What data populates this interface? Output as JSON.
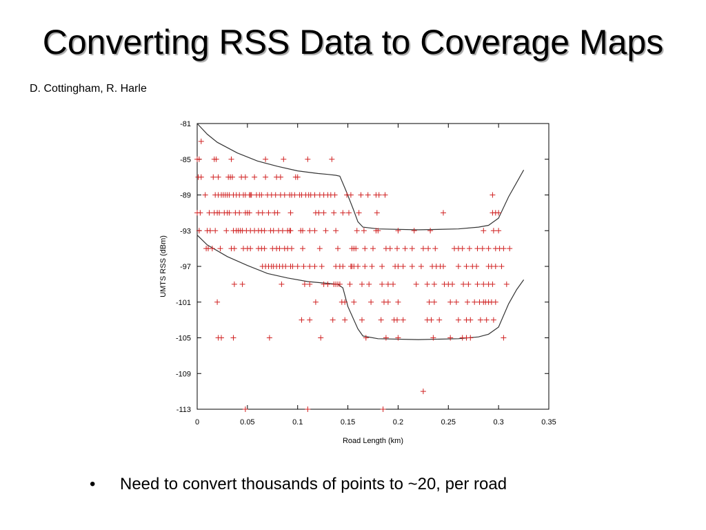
{
  "slide": {
    "title": "Converting RSS Data to Coverage Maps",
    "authors": "D. Cottingham, R. Harle",
    "bullet_symbol": "•",
    "bullet_text": "Need to convert thousands of points to ~20, per road"
  },
  "chart_data": {
    "type": "scatter",
    "title": "",
    "xlabel": "Road Length (km)",
    "ylabel": "UMTS RSS (dBm)",
    "xlim": [
      0,
      0.35
    ],
    "ylim": [
      -113,
      -81
    ],
    "xticks": [
      "0",
      "0.05",
      "0.1",
      "0.15",
      "0.2",
      "0.25",
      "0.3",
      "0.35"
    ],
    "yticks": [
      "-81",
      "-85",
      "-89",
      "-93",
      "-97",
      "-101",
      "-105",
      "-109",
      "-113"
    ],
    "point_color": "#d02020",
    "line_color": "#333333",
    "points": [
      [
        0.004,
        -83
      ],
      [
        0.0,
        -85
      ],
      [
        0.002,
        -85
      ],
      [
        0.017,
        -85
      ],
      [
        0.019,
        -85
      ],
      [
        0.034,
        -85
      ],
      [
        0.068,
        -85
      ],
      [
        0.086,
        -85
      ],
      [
        0.11,
        -85
      ],
      [
        0.134,
        -85
      ],
      [
        0.001,
        -87
      ],
      [
        0.004,
        -87
      ],
      [
        0.016,
        -87
      ],
      [
        0.021,
        -87
      ],
      [
        0.031,
        -87
      ],
      [
        0.033,
        -87
      ],
      [
        0.035,
        -87
      ],
      [
        0.044,
        -87
      ],
      [
        0.048,
        -87
      ],
      [
        0.057,
        -87
      ],
      [
        0.068,
        -87
      ],
      [
        0.079,
        -87
      ],
      [
        0.083,
        -87
      ],
      [
        0.098,
        -87
      ],
      [
        0.1,
        -87
      ],
      [
        0.008,
        -89
      ],
      [
        0.018,
        -89
      ],
      [
        0.021,
        -89
      ],
      [
        0.024,
        -89
      ],
      [
        0.026,
        -89
      ],
      [
        0.028,
        -89
      ],
      [
        0.03,
        -89
      ],
      [
        0.032,
        -89
      ],
      [
        0.036,
        -89
      ],
      [
        0.039,
        -89
      ],
      [
        0.042,
        -89
      ],
      [
        0.046,
        -89
      ],
      [
        0.048,
        -89
      ],
      [
        0.052,
        -89
      ],
      [
        0.054,
        -89
      ],
      [
        0.053,
        -89
      ],
      [
        0.059,
        -89
      ],
      [
        0.062,
        -89
      ],
      [
        0.064,
        -89
      ],
      [
        0.07,
        -89
      ],
      [
        0.074,
        -89
      ],
      [
        0.078,
        -89
      ],
      [
        0.083,
        -89
      ],
      [
        0.087,
        -89
      ],
      [
        0.092,
        -89
      ],
      [
        0.094,
        -89
      ],
      [
        0.097,
        -89
      ],
      [
        0.102,
        -89
      ],
      [
        0.104,
        -89
      ],
      [
        0.108,
        -89
      ],
      [
        0.111,
        -89
      ],
      [
        0.113,
        -89
      ],
      [
        0.117,
        -89
      ],
      [
        0.122,
        -89
      ],
      [
        0.126,
        -89
      ],
      [
        0.13,
        -89
      ],
      [
        0.133,
        -89
      ],
      [
        0.137,
        -89
      ],
      [
        0.149,
        -89
      ],
      [
        0.153,
        -89
      ],
      [
        0.163,
        -89
      ],
      [
        0.17,
        -89
      ],
      [
        0.178,
        -89
      ],
      [
        0.181,
        -89
      ],
      [
        0.187,
        -89
      ],
      [
        0.294,
        -89
      ],
      [
        0.0,
        -91
      ],
      [
        0.003,
        -91
      ],
      [
        0.012,
        -91
      ],
      [
        0.017,
        -91
      ],
      [
        0.02,
        -91
      ],
      [
        0.022,
        -91
      ],
      [
        0.027,
        -91
      ],
      [
        0.03,
        -91
      ],
      [
        0.032,
        -91
      ],
      [
        0.038,
        -91
      ],
      [
        0.042,
        -91
      ],
      [
        0.048,
        -91
      ],
      [
        0.05,
        -91
      ],
      [
        0.052,
        -91
      ],
      [
        0.061,
        -91
      ],
      [
        0.065,
        -91
      ],
      [
        0.071,
        -91
      ],
      [
        0.077,
        -91
      ],
      [
        0.08,
        -91
      ],
      [
        0.093,
        -91
      ],
      [
        0.118,
        -91
      ],
      [
        0.121,
        -91
      ],
      [
        0.126,
        -91
      ],
      [
        0.136,
        -91
      ],
      [
        0.145,
        -91
      ],
      [
        0.151,
        -91
      ],
      [
        0.161,
        -91
      ],
      [
        0.179,
        -91
      ],
      [
        0.245,
        -91
      ],
      [
        0.294,
        -91
      ],
      [
        0.297,
        -91
      ],
      [
        0.3,
        -91
      ],
      [
        0.002,
        -93
      ],
      [
        0.01,
        -93
      ],
      [
        0.013,
        -93
      ],
      [
        0.018,
        -93
      ],
      [
        0.029,
        -93
      ],
      [
        0.036,
        -93
      ],
      [
        0.039,
        -93
      ],
      [
        0.041,
        -93
      ],
      [
        0.043,
        -93
      ],
      [
        0.045,
        -93
      ],
      [
        0.049,
        -93
      ],
      [
        0.053,
        -93
      ],
      [
        0.057,
        -93
      ],
      [
        0.061,
        -93
      ],
      [
        0.064,
        -93
      ],
      [
        0.067,
        -93
      ],
      [
        0.073,
        -93
      ],
      [
        0.076,
        -93
      ],
      [
        0.081,
        -93
      ],
      [
        0.085,
        -93
      ],
      [
        0.09,
        -93
      ],
      [
        0.092,
        -93
      ],
      [
        0.093,
        -93
      ],
      [
        0.103,
        -93
      ],
      [
        0.105,
        -93
      ],
      [
        0.112,
        -93
      ],
      [
        0.117,
        -93
      ],
      [
        0.128,
        -93
      ],
      [
        0.138,
        -93
      ],
      [
        0.159,
        -93
      ],
      [
        0.166,
        -93
      ],
      [
        0.178,
        -93
      ],
      [
        0.18,
        -93
      ],
      [
        0.2,
        -93
      ],
      [
        0.216,
        -93
      ],
      [
        0.232,
        -93
      ],
      [
        0.285,
        -93
      ],
      [
        0.295,
        -93
      ],
      [
        0.3,
        -93
      ],
      [
        0.009,
        -95
      ],
      [
        0.011,
        -95
      ],
      [
        0.015,
        -95
      ],
      [
        0.023,
        -95
      ],
      [
        0.034,
        -95
      ],
      [
        0.037,
        -95
      ],
      [
        0.046,
        -95
      ],
      [
        0.05,
        -95
      ],
      [
        0.053,
        -95
      ],
      [
        0.061,
        -95
      ],
      [
        0.064,
        -95
      ],
      [
        0.067,
        -95
      ],
      [
        0.075,
        -95
      ],
      [
        0.079,
        -95
      ],
      [
        0.082,
        -95
      ],
      [
        0.087,
        -95
      ],
      [
        0.09,
        -95
      ],
      [
        0.094,
        -95
      ],
      [
        0.105,
        -95
      ],
      [
        0.122,
        -95
      ],
      [
        0.14,
        -95
      ],
      [
        0.154,
        -95
      ],
      [
        0.156,
        -95
      ],
      [
        0.158,
        -95
      ],
      [
        0.167,
        -95
      ],
      [
        0.175,
        -95
      ],
      [
        0.188,
        -95
      ],
      [
        0.192,
        -95
      ],
      [
        0.199,
        -95
      ],
      [
        0.207,
        -95
      ],
      [
        0.214,
        -95
      ],
      [
        0.225,
        -95
      ],
      [
        0.23,
        -95
      ],
      [
        0.237,
        -95
      ],
      [
        0.256,
        -95
      ],
      [
        0.26,
        -95
      ],
      [
        0.264,
        -95
      ],
      [
        0.271,
        -95
      ],
      [
        0.279,
        -95
      ],
      [
        0.284,
        -95
      ],
      [
        0.29,
        -95
      ],
      [
        0.297,
        -95
      ],
      [
        0.301,
        -95
      ],
      [
        0.305,
        -95
      ],
      [
        0.311,
        -95
      ],
      [
        0.065,
        -97
      ],
      [
        0.068,
        -97
      ],
      [
        0.071,
        -97
      ],
      [
        0.074,
        -97
      ],
      [
        0.076,
        -97
      ],
      [
        0.079,
        -97
      ],
      [
        0.082,
        -97
      ],
      [
        0.085,
        -97
      ],
      [
        0.088,
        -97
      ],
      [
        0.093,
        -97
      ],
      [
        0.095,
        -97
      ],
      [
        0.1,
        -97
      ],
      [
        0.106,
        -97
      ],
      [
        0.112,
        -97
      ],
      [
        0.117,
        -97
      ],
      [
        0.124,
        -97
      ],
      [
        0.138,
        -97
      ],
      [
        0.142,
        -97
      ],
      [
        0.145,
        -97
      ],
      [
        0.153,
        -97
      ],
      [
        0.154,
        -97
      ],
      [
        0.156,
        -97
      ],
      [
        0.16,
        -97
      ],
      [
        0.167,
        -97
      ],
      [
        0.174,
        -97
      ],
      [
        0.184,
        -97
      ],
      [
        0.197,
        -97
      ],
      [
        0.2,
        -97
      ],
      [
        0.205,
        -97
      ],
      [
        0.214,
        -97
      ],
      [
        0.223,
        -97
      ],
      [
        0.234,
        -97
      ],
      [
        0.238,
        -97
      ],
      [
        0.242,
        -97
      ],
      [
        0.245,
        -97
      ],
      [
        0.26,
        -97
      ],
      [
        0.268,
        -97
      ],
      [
        0.274,
        -97
      ],
      [
        0.278,
        -97
      ],
      [
        0.29,
        -97
      ],
      [
        0.293,
        -97
      ],
      [
        0.297,
        -97
      ],
      [
        0.303,
        -97
      ],
      [
        0.037,
        -99
      ],
      [
        0.045,
        -99
      ],
      [
        0.084,
        -99
      ],
      [
        0.107,
        -99
      ],
      [
        0.112,
        -99
      ],
      [
        0.126,
        -99
      ],
      [
        0.13,
        -99
      ],
      [
        0.136,
        -99
      ],
      [
        0.138,
        -99
      ],
      [
        0.14,
        -99
      ],
      [
        0.142,
        -99
      ],
      [
        0.152,
        -99
      ],
      [
        0.164,
        -99
      ],
      [
        0.171,
        -99
      ],
      [
        0.184,
        -99
      ],
      [
        0.19,
        -99
      ],
      [
        0.195,
        -99
      ],
      [
        0.218,
        -99
      ],
      [
        0.229,
        -99
      ],
      [
        0.236,
        -99
      ],
      [
        0.246,
        -99
      ],
      [
        0.25,
        -99
      ],
      [
        0.254,
        -99
      ],
      [
        0.265,
        -99
      ],
      [
        0.27,
        -99
      ],
      [
        0.279,
        -99
      ],
      [
        0.285,
        -99
      ],
      [
        0.29,
        -99
      ],
      [
        0.294,
        -99
      ],
      [
        0.308,
        -99
      ],
      [
        0.02,
        -101
      ],
      [
        0.118,
        -101
      ],
      [
        0.144,
        -101
      ],
      [
        0.147,
        -101
      ],
      [
        0.156,
        -101
      ],
      [
        0.173,
        -101
      ],
      [
        0.186,
        -101
      ],
      [
        0.19,
        -101
      ],
      [
        0.2,
        -101
      ],
      [
        0.231,
        -101
      ],
      [
        0.236,
        -101
      ],
      [
        0.252,
        -101
      ],
      [
        0.258,
        -101
      ],
      [
        0.269,
        -101
      ],
      [
        0.276,
        -101
      ],
      [
        0.281,
        -101
      ],
      [
        0.285,
        -101
      ],
      [
        0.287,
        -101
      ],
      [
        0.29,
        -101
      ],
      [
        0.293,
        -101
      ],
      [
        0.297,
        -101
      ],
      [
        0.104,
        -103
      ],
      [
        0.112,
        -103
      ],
      [
        0.135,
        -103
      ],
      [
        0.147,
        -103
      ],
      [
        0.164,
        -103
      ],
      [
        0.183,
        -103
      ],
      [
        0.196,
        -103
      ],
      [
        0.199,
        -103
      ],
      [
        0.205,
        -103
      ],
      [
        0.229,
        -103
      ],
      [
        0.233,
        -103
      ],
      [
        0.241,
        -103
      ],
      [
        0.26,
        -103
      ],
      [
        0.268,
        -103
      ],
      [
        0.272,
        -103
      ],
      [
        0.282,
        -103
      ],
      [
        0.288,
        -103
      ],
      [
        0.295,
        -103
      ],
      [
        0.021,
        -105
      ],
      [
        0.024,
        -105
      ],
      [
        0.036,
        -105
      ],
      [
        0.072,
        -105
      ],
      [
        0.123,
        -105
      ],
      [
        0.168,
        -105
      ],
      [
        0.188,
        -105
      ],
      [
        0.2,
        -105
      ],
      [
        0.235,
        -105
      ],
      [
        0.252,
        -105
      ],
      [
        0.264,
        -105
      ],
      [
        0.268,
        -105
      ],
      [
        0.272,
        -105
      ],
      [
        0.305,
        -105
      ],
      [
        0.225,
        -111
      ],
      [
        0.048,
        -113
      ],
      [
        0.11,
        -113
      ],
      [
        0.185,
        -113
      ]
    ],
    "upper_curve": [
      [
        0.0,
        -81.0
      ],
      [
        0.01,
        -82.2
      ],
      [
        0.02,
        -83.1
      ],
      [
        0.04,
        -84.3
      ],
      [
        0.06,
        -85.2
      ],
      [
        0.08,
        -85.8
      ],
      [
        0.1,
        -86.3
      ],
      [
        0.12,
        -86.6
      ],
      [
        0.13,
        -86.7
      ],
      [
        0.138,
        -86.8
      ],
      [
        0.142,
        -86.9
      ],
      [
        0.148,
        -88.5
      ],
      [
        0.155,
        -90.5
      ],
      [
        0.16,
        -92.0
      ],
      [
        0.165,
        -92.6
      ],
      [
        0.18,
        -92.8
      ],
      [
        0.22,
        -92.9
      ],
      [
        0.26,
        -92.8
      ],
      [
        0.28,
        -92.6
      ],
      [
        0.29,
        -92.4
      ],
      [
        0.3,
        -91.6
      ],
      [
        0.31,
        -89.2
      ],
      [
        0.318,
        -87.6
      ],
      [
        0.325,
        -86.2
      ]
    ],
    "lower_curve": [
      [
        0.0,
        -93.5
      ],
      [
        0.01,
        -94.6
      ],
      [
        0.03,
        -95.9
      ],
      [
        0.05,
        -96.9
      ],
      [
        0.07,
        -97.8
      ],
      [
        0.09,
        -98.3
      ],
      [
        0.11,
        -98.7
      ],
      [
        0.13,
        -98.9
      ],
      [
        0.14,
        -99.0
      ],
      [
        0.145,
        -99.4
      ],
      [
        0.15,
        -101.5
      ],
      [
        0.16,
        -104.0
      ],
      [
        0.165,
        -104.8
      ],
      [
        0.18,
        -105.1
      ],
      [
        0.22,
        -105.2
      ],
      [
        0.26,
        -105.1
      ],
      [
        0.28,
        -104.9
      ],
      [
        0.29,
        -104.6
      ],
      [
        0.3,
        -103.8
      ],
      [
        0.31,
        -101.2
      ],
      [
        0.318,
        -99.6
      ],
      [
        0.325,
        -98.5
      ]
    ]
  }
}
